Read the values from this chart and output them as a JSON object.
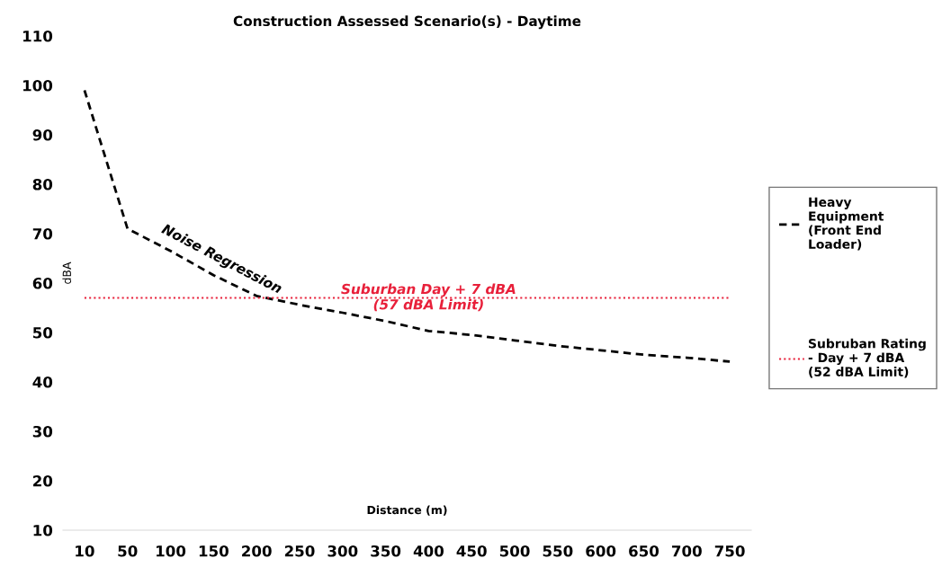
{
  "chart_data": {
    "type": "line",
    "title": "Construction Assessed Scenario(s) - Daytime",
    "xlabel": "Distance (m)",
    "ylabel": "dBA",
    "categories": [
      "10",
      "50",
      "100",
      "150",
      "200",
      "250",
      "300",
      "350",
      "400",
      "450",
      "500",
      "550",
      "600",
      "650",
      "700",
      "750"
    ],
    "series": [
      {
        "name": "Heavy\nEquipment\n(Front End\nLoader)",
        "color": "#000000",
        "line_style": "dashed",
        "values": [
          99,
          71,
          66.5,
          61.6,
          57.4,
          55.6,
          54,
          52.3,
          50.3,
          49.5,
          48.4,
          47.3,
          46.4,
          45.5,
          44.9,
          44.1
        ]
      },
      {
        "name": "Subruban Rating\n- Day + 7 dBA\n(52 dBA Limit)",
        "color": "#e8203a",
        "line_style": "dotted",
        "values": [
          57,
          57,
          57,
          57,
          57,
          57,
          57,
          57,
          57,
          57,
          57,
          57,
          57,
          57,
          57,
          57
        ]
      }
    ],
    "annotations": [
      {
        "text": "Noise Regression",
        "x": "150",
        "y": 61.6
      },
      {
        "text": "Suburban Day + 7 dBA\n(57 dBA Limit)",
        "x": "400",
        "y": 57
      }
    ],
    "ylim": [
      10,
      110
    ],
    "yticks": [
      10,
      20,
      30,
      40,
      50,
      60,
      70,
      80,
      90,
      100,
      110
    ],
    "grid": false,
    "legend": "right",
    "marker": "none"
  }
}
